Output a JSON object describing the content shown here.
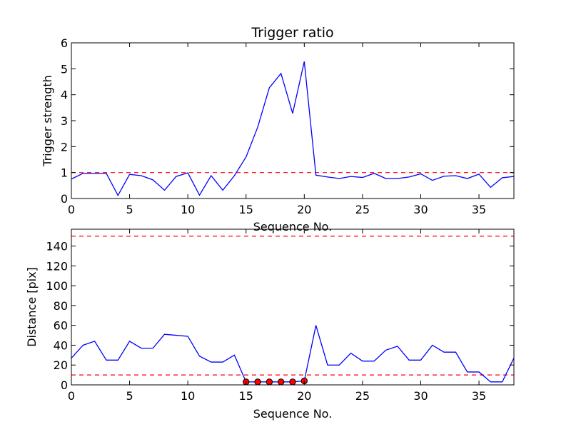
{
  "chart_data": [
    {
      "type": "line",
      "title": "Trigger ratio",
      "xlabel": "Sequence No.",
      "ylabel": "Trigger strength",
      "xlim": [
        0,
        38
      ],
      "ylim": [
        0,
        6
      ],
      "xticks": [
        0,
        5,
        10,
        15,
        20,
        25,
        30,
        35
      ],
      "yticks": [
        0,
        1,
        2,
        3,
        4,
        5,
        6
      ],
      "grid": false,
      "series": [
        {
          "color": "#0000ff",
          "x": [
            0,
            1,
            2,
            3,
            4,
            5,
            6,
            7,
            8,
            9,
            10,
            11,
            12,
            13,
            14,
            15,
            16,
            17,
            18,
            19,
            20,
            21,
            22,
            23,
            24,
            25,
            26,
            27,
            28,
            29,
            30,
            31,
            32,
            33,
            34,
            35,
            36,
            37,
            38
          ],
          "values": [
            0.75,
            0.97,
            0.97,
            0.97,
            0.12,
            0.93,
            0.88,
            0.72,
            0.32,
            0.85,
            0.99,
            0.13,
            0.88,
            0.32,
            0.88,
            1.6,
            2.75,
            4.27,
            4.82,
            3.28,
            5.28,
            0.9,
            0.83,
            0.77,
            0.85,
            0.81,
            0.97,
            0.77,
            0.77,
            0.83,
            0.95,
            0.7,
            0.86,
            0.88,
            0.77,
            0.94,
            0.43,
            0.8,
            0.85
          ]
        }
      ],
      "threshold_lines": [
        {
          "y": 1,
          "color": "#ff0000",
          "style": "dashed"
        }
      ]
    },
    {
      "type": "line",
      "title": "",
      "xlabel": "Sequence No.",
      "ylabel": "Distance [pix]",
      "xlim": [
        0,
        38
      ],
      "ylim": [
        0,
        157
      ],
      "xticks": [
        0,
        5,
        10,
        15,
        20,
        25,
        30,
        35
      ],
      "yticks": [
        0,
        20,
        40,
        60,
        80,
        100,
        120,
        140
      ],
      "grid": false,
      "series": [
        {
          "color": "#0000ff",
          "x": [
            0,
            1,
            2,
            3,
            4,
            5,
            6,
            7,
            8,
            9,
            10,
            11,
            12,
            13,
            14,
            15,
            16,
            17,
            18,
            19,
            20,
            21,
            22,
            23,
            24,
            25,
            26,
            27,
            28,
            29,
            30,
            31,
            32,
            33,
            34,
            35,
            36,
            37,
            38
          ],
          "values": [
            27,
            40,
            44,
            25,
            25,
            44,
            37,
            37,
            51,
            50,
            49,
            29,
            23,
            23,
            30,
            3,
            3,
            3,
            3,
            3,
            4,
            60,
            20,
            20,
            32,
            24,
            24,
            35,
            39,
            25,
            25,
            40,
            33,
            33,
            13,
            13,
            3,
            3,
            27
          ]
        }
      ],
      "markers": {
        "color": "#ff0000",
        "x": [
          15,
          16,
          17,
          18,
          19,
          20
        ],
        "values": [
          3,
          3,
          3,
          3,
          3,
          4
        ]
      },
      "threshold_lines": [
        {
          "y": 150,
          "color": "#ff0000",
          "style": "dashed"
        },
        {
          "y": 10,
          "color": "#ff0000",
          "style": "dashed"
        }
      ]
    }
  ]
}
